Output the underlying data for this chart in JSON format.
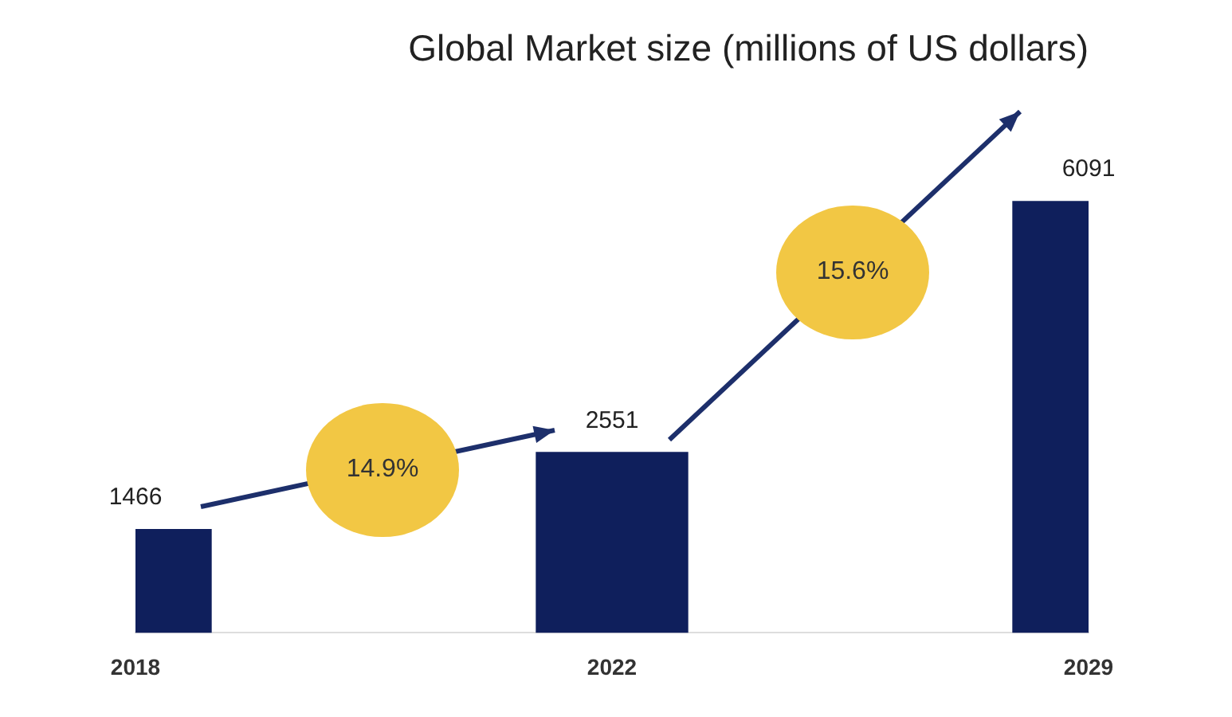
{
  "chart_data": {
    "type": "bar",
    "title": "Global Market size (millions of US dollars)",
    "categories": [
      "2018",
      "2022",
      "2029"
    ],
    "values": [
      1466,
      2551,
      6091
    ],
    "color": "#0f1f5c",
    "data_labels": true,
    "grid": false,
    "legend": false,
    "annotations": [
      "14.9%",
      "15.6%"
    ]
  }
}
